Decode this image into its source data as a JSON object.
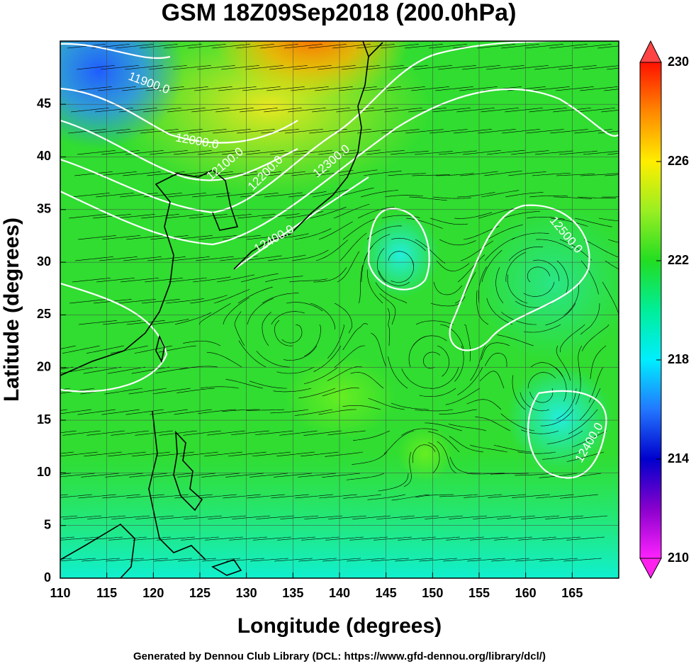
{
  "chart_data": {
    "type": "contour",
    "title": "GSM 18Z09Sep2018 (200.0hPa)",
    "x_label": "Longitude (degrees)",
    "y_label": "Latitude  (degrees)",
    "xlim": [
      110,
      170
    ],
    "xticks": [
      110,
      115,
      120,
      125,
      130,
      135,
      140,
      145,
      150,
      155,
      160,
      165
    ],
    "ylim": [
      0,
      51
    ],
    "yticks": [
      0,
      5,
      10,
      15,
      20,
      25,
      30,
      35,
      40,
      45
    ],
    "grid": true,
    "colorbar": {
      "lim": [
        210,
        230
      ],
      "ticks": [
        210,
        214,
        218,
        222,
        226,
        230
      ]
    },
    "contour_labels": [
      "11900.0",
      "12000.0",
      "12100.0",
      "12200.0",
      "12300.0",
      "12400.0",
      "12500.0",
      "12400.0"
    ],
    "footer": "Generated by Dennou Club Library (DCL: https://www.gfd-dennou.org/library/dcl/)"
  }
}
